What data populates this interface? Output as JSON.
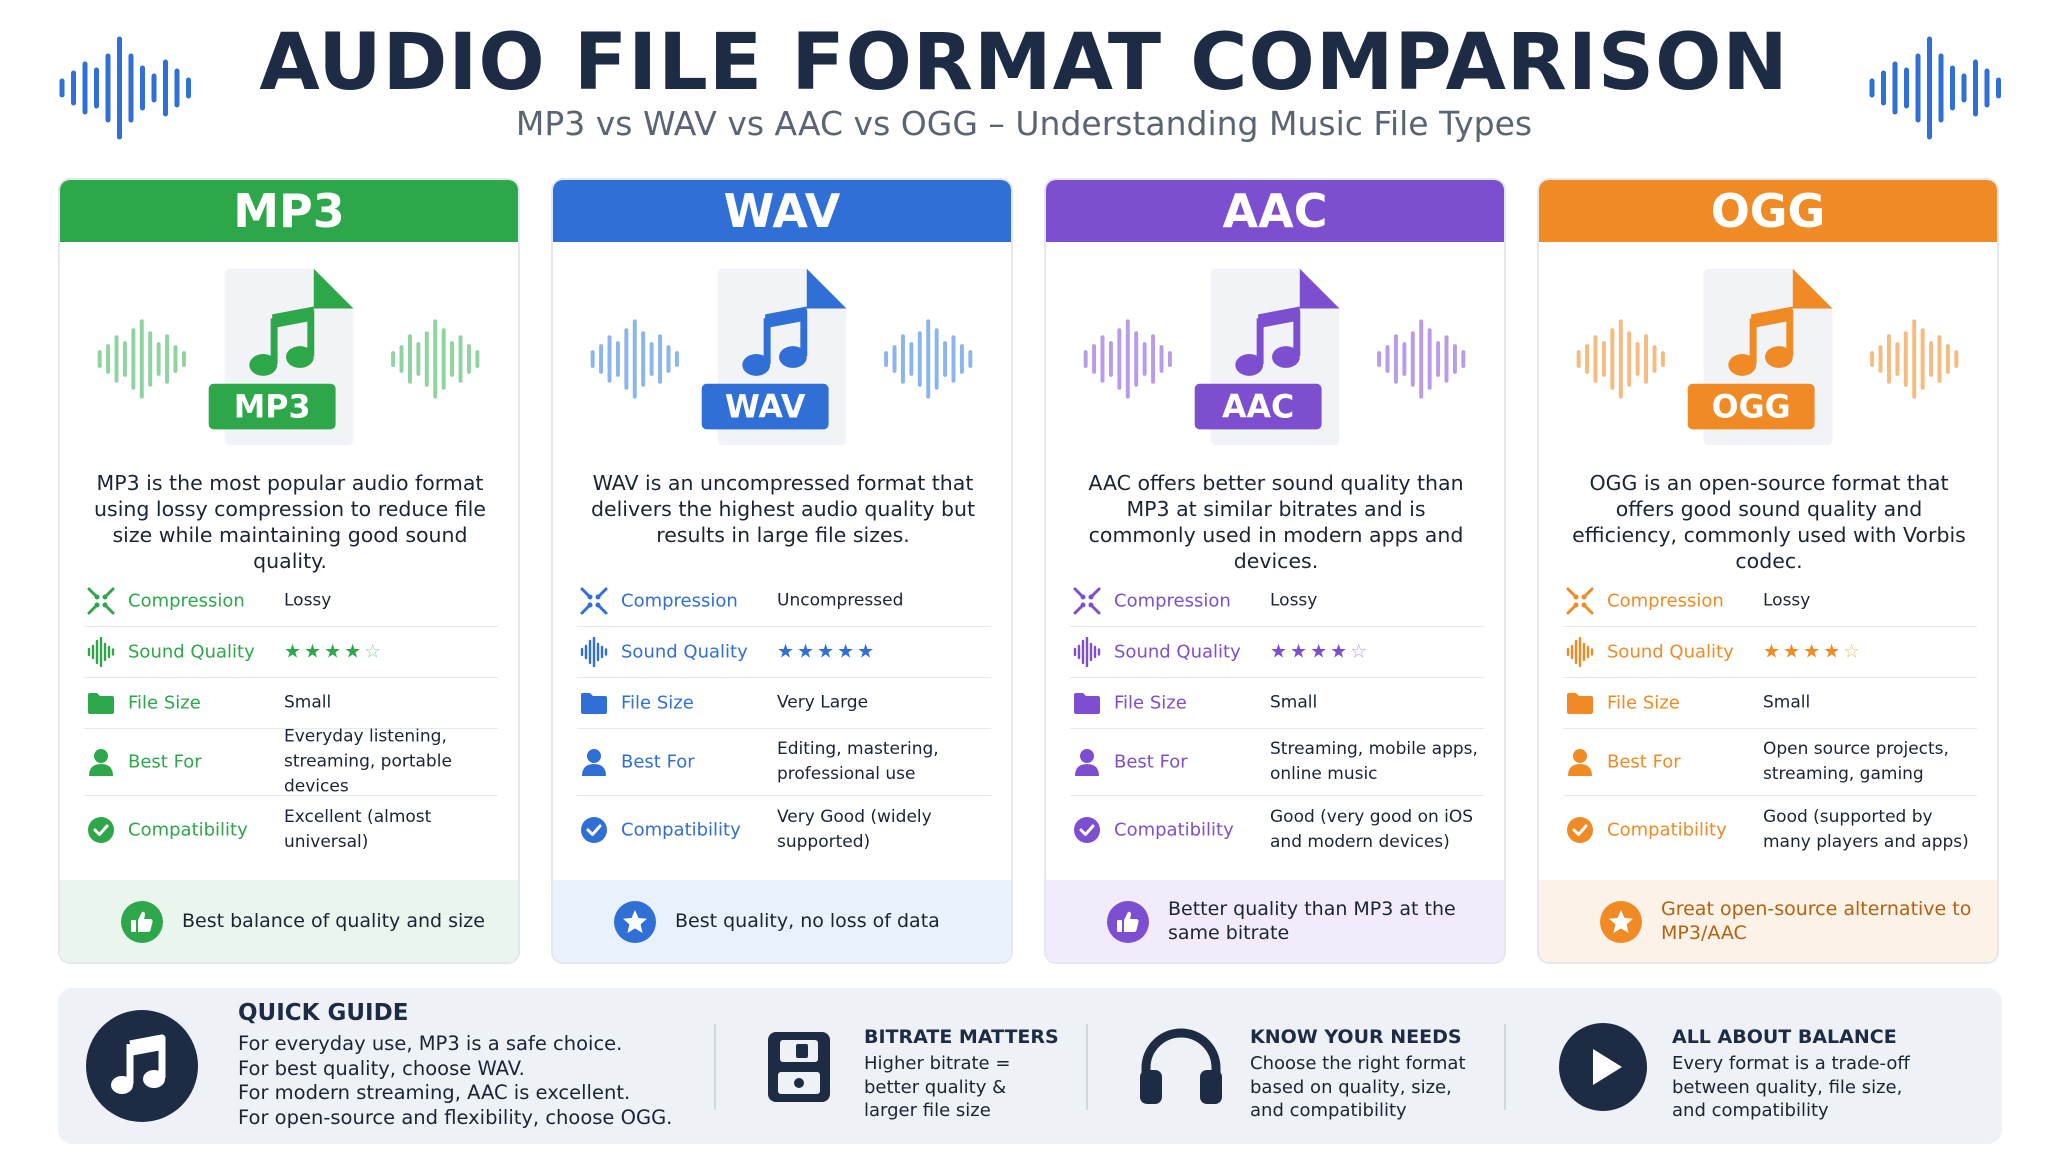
{
  "header": {
    "title": "AUDIO FILE FORMAT COMPARISON",
    "subtitle": "MP3 vs WAV vs AAC vs OGG – Understanding Music File Types",
    "wave_icon": "sound-wave-icon",
    "color": "#2f6fd6"
  },
  "row_labels": {
    "compression": "Compression",
    "sound_quality": "Sound Quality",
    "file_size": "File Size",
    "best_for": "Best For",
    "compatibility": "Compatibility"
  },
  "formats": [
    {
      "name": "MP3",
      "badge": "MP3",
      "color": "#2ea64a",
      "light": "#eaf6ed",
      "wave": "#8fd3a0",
      "description": "MP3 is the most popular audio format using lossy compression to reduce file size while maintaining good sound quality.",
      "compression": "Lossy",
      "quality_stars": 4,
      "file_size": "Small",
      "best_for": "Everyday listening, streaming, portable devices",
      "compatibility": "Excellent (almost universal)",
      "footer": "Best balance of quality and size",
      "footer_icon": "thumbs-up-icon"
    },
    {
      "name": "WAV",
      "badge": "WAV",
      "color": "#2f6fd6",
      "light": "#e9f1fc",
      "wave": "#8ab5ef",
      "description": "WAV is an uncompressed format that delivers the highest audio quality but results in large file sizes.",
      "compression": "Uncompressed",
      "quality_stars": 5,
      "file_size": "Very Large",
      "best_for": "Editing, mastering, professional use",
      "compatibility": "Very Good (widely supported)",
      "footer": "Best quality, no loss of data",
      "footer_icon": "star-icon"
    },
    {
      "name": "AAC",
      "badge": "AAC",
      "color": "#7d4fd0",
      "light": "#f1ebfb",
      "wave": "#b89be9",
      "description": "AAC offers better sound quality than MP3 at similar bitrates and is commonly used in modern apps and devices.",
      "compression": "Lossy",
      "quality_stars": 4,
      "file_size": "Small",
      "best_for": "Streaming, mobile apps, online music",
      "compatibility": "Good (very good on iOS and modern devices)",
      "footer": "Better quality than MP3 at the same bitrate",
      "footer_icon": "thumbs-up-icon"
    },
    {
      "name": "OGG",
      "badge": "OGG",
      "color": "#f08a24",
      "light": "#fdf2e7",
      "wave": "#f6bb7e",
      "description": "OGG is an open-source format that offers good sound quality and efficiency, commonly used with Vorbis codec.",
      "compression": "Lossy",
      "quality_stars": 4,
      "file_size": "Small",
      "best_for": "Open source projects, streaming, gaming",
      "compatibility": "Good (supported by many players and apps)",
      "footer": "Great open-source alternative to MP3/AAC",
      "footer_icon": "star-icon"
    }
  ],
  "guide": {
    "title": "QUICK GUIDE",
    "lines": [
      "For everyday use, MP3 is a safe choice.",
      "For best quality, choose WAV.",
      "For modern streaming, AAC is excellent.",
      "For open-source and flexibility, choose OGG."
    ],
    "icon": "music-note-icon",
    "tips": [
      {
        "title": "BITRATE MATTERS",
        "lines": [
          "Higher bitrate =",
          "better quality &",
          "larger file size"
        ],
        "icon": "floppy-disk-icon"
      },
      {
        "title": "KNOW YOUR NEEDS",
        "lines": [
          "Choose the right format",
          "based on quality, size,",
          "and compatibility"
        ],
        "icon": "headphones-icon"
      },
      {
        "title": "ALL ABOUT BALANCE",
        "lines": [
          "Every format is a trade-off",
          "between quality, file size,",
          "and compatibility"
        ],
        "icon": "play-icon"
      }
    ]
  }
}
